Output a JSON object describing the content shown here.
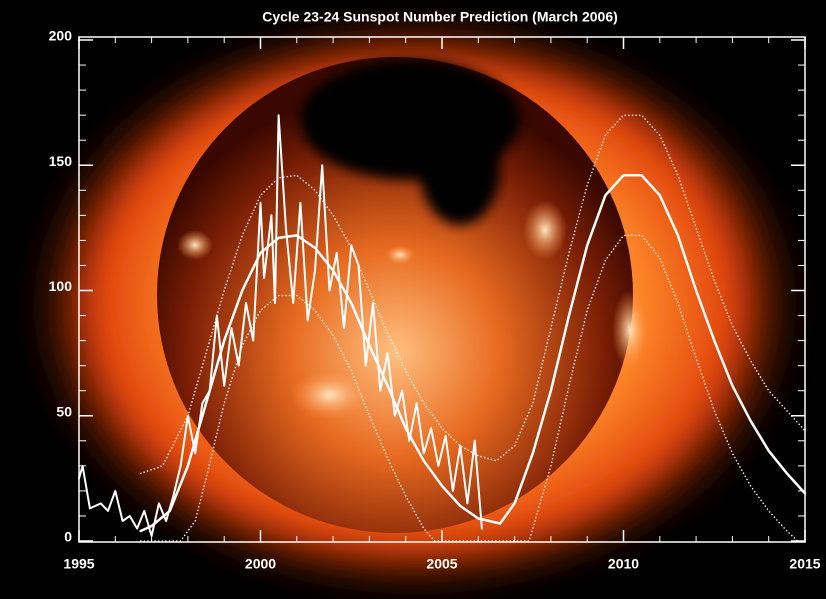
{
  "chart_data": {
    "type": "line",
    "title": "Cycle 23-24 Sunspot Number Prediction (March 2006)",
    "xlim": [
      1995,
      2015
    ],
    "xticks": [
      1995,
      2000,
      2005,
      2010,
      2015
    ],
    "minor_xticks": [
      1996,
      1997,
      1998,
      1999,
      2001,
      2002,
      2003,
      2004,
      2006,
      2007,
      2008,
      2009,
      2011,
      2012,
      2013,
      2014
    ],
    "ylim": [
      0,
      200
    ],
    "yticks": [
      0,
      50,
      100,
      150,
      200
    ],
    "minor_yticks": [
      10,
      20,
      30,
      40,
      60,
      70,
      80,
      90,
      110,
      120,
      130,
      140,
      160,
      170,
      180,
      190
    ],
    "series": [
      {
        "color": "#ffffff",
        "dash": "solid",
        "width": 2,
        "x": [
          1995.0,
          1995.1,
          1995.3,
          1995.6,
          1995.8,
          1996.0,
          1996.2,
          1996.4,
          1996.6,
          1996.8,
          1997.0,
          1997.2,
          1997.4,
          1997.6,
          1997.8,
          1998.0,
          1998.2,
          1998.4,
          1998.6,
          1998.8,
          1999.0,
          1999.2,
          1999.4,
          1999.6,
          1999.8,
          2000.0,
          2000.1,
          2000.3,
          2000.4,
          2000.5,
          2000.7,
          2000.9,
          2001.1,
          2001.3,
          2001.5,
          2001.7,
          2001.9,
          2002.1,
          2002.3,
          2002.5,
          2002.7,
          2002.9,
          2003.1,
          2003.3,
          2003.5,
          2003.7,
          2003.9,
          2004.1,
          2004.3,
          2004.5,
          2004.7,
          2004.9,
          2005.1,
          2005.3,
          2005.5,
          2005.7,
          2005.9,
          2006.1
        ],
        "values": [
          25,
          30,
          13,
          15,
          12,
          20,
          8,
          10,
          5,
          12,
          2,
          15,
          8,
          18,
          30,
          50,
          35,
          55,
          60,
          90,
          62,
          85,
          70,
          95,
          80,
          135,
          105,
          130,
          95,
          170,
          125,
          95,
          135,
          88,
          108,
          150,
          100,
          115,
          85,
          118,
          110,
          70,
          95,
          60,
          75,
          50,
          60,
          40,
          55,
          35,
          45,
          30,
          42,
          20,
          38,
          15,
          40,
          5
        ]
      },
      {
        "color": "#ffffff",
        "dash": "solid",
        "width": 2.5,
        "x": [
          1996.7,
          1997.0,
          1997.5,
          1998.0,
          1998.5,
          1999.0,
          1999.5,
          2000.0,
          2000.5,
          2001.0,
          2001.5,
          2002.0,
          2002.5,
          2003.0,
          2003.5,
          2004.0,
          2004.5,
          2005.0,
          2005.5,
          2006.0,
          2006.6,
          2007.0,
          2007.5,
          2008.0,
          2008.5,
          2009.0,
          2009.5,
          2010.0,
          2010.5,
          2011.0,
          2011.5,
          2012.0,
          2012.5,
          2013.0,
          2013.5,
          2014.0,
          2014.5,
          2015.0
        ],
        "values": [
          4,
          6,
          12,
          30,
          55,
          80,
          100,
          115,
          121,
          122,
          117,
          108,
          95,
          78,
          62,
          45,
          32,
          22,
          14,
          9,
          7,
          15,
          35,
          60,
          90,
          118,
          138,
          146,
          146,
          138,
          122,
          100,
          80,
          62,
          48,
          36,
          27,
          19
        ]
      },
      {
        "color": "#ffffff",
        "dash": "dotted",
        "width": 1.5,
        "x": [
          1996.7,
          1997.3,
          1998.0,
          1998.5,
          1999.0,
          1999.5,
          2000.0,
          2000.5,
          2001.0,
          2001.5,
          2002.0,
          2002.5,
          2003.0,
          2003.5,
          2004.0,
          2004.5,
          2005.0,
          2005.5,
          2006.0,
          2006.5,
          2007.0,
          2007.5,
          2008.0,
          2008.5,
          2009.0,
          2009.5,
          2010.0,
          2010.5,
          2011.0,
          2011.5,
          2012.0,
          2012.5,
          2013.0,
          2013.5,
          2014.0,
          2014.5,
          2015.0
        ],
        "values": [
          27,
          30,
          50,
          75,
          100,
          122,
          138,
          145,
          146,
          140,
          130,
          117,
          100,
          83,
          68,
          55,
          45,
          38,
          34,
          32,
          38,
          55,
          85,
          115,
          142,
          162,
          170,
          170,
          162,
          146,
          125,
          104,
          86,
          72,
          60,
          52,
          44
        ]
      },
      {
        "color": "#ffffff",
        "dash": "dotted",
        "width": 1.5,
        "x": [
          1996.7,
          1997.8,
          1998.2,
          1998.5,
          1999.0,
          1999.5,
          2000.0,
          2000.5,
          2001.0,
          2001.5,
          2002.0,
          2002.5,
          2003.0,
          2003.5,
          2004.0,
          2004.5,
          2004.8,
          2007.4,
          2008.0,
          2008.5,
          2009.0,
          2009.5,
          2010.0,
          2010.5,
          2011.0,
          2011.5,
          2012.0,
          2012.5,
          2013.0,
          2013.5,
          2014.0,
          2014.5,
          2014.8
        ],
        "values": [
          0,
          0,
          8,
          25,
          55,
          78,
          92,
          98,
          98,
          92,
          82,
          68,
          50,
          33,
          18,
          5,
          0,
          0,
          30,
          62,
          92,
          112,
          122,
          122,
          113,
          95,
          73,
          52,
          35,
          22,
          12,
          4,
          0
        ]
      }
    ]
  }
}
